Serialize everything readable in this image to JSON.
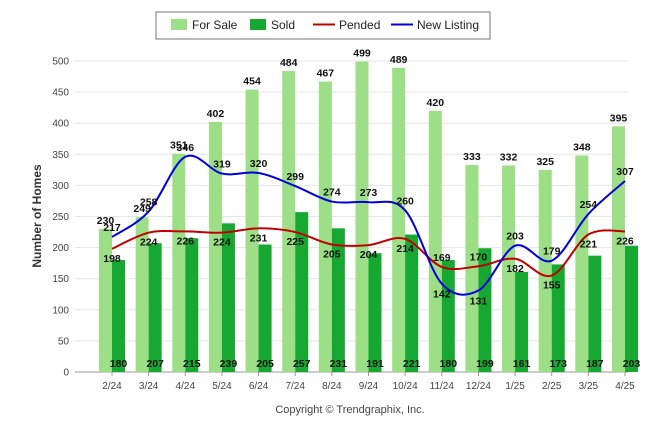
{
  "chart_data": {
    "type": "bar",
    "categories": [
      "2/24",
      "3/24",
      "4/24",
      "5/24",
      "6/24",
      "7/24",
      "8/24",
      "9/24",
      "10/24",
      "11/24",
      "12/24",
      "1/25",
      "2/25",
      "3/25",
      "4/25"
    ],
    "series": [
      {
        "name": "For Sale",
        "kind": "bar",
        "color": "#9ddf86",
        "values": [
          230,
          249,
          351,
          402,
          454,
          484,
          467,
          499,
          489,
          420,
          333,
          332,
          325,
          348,
          395
        ]
      },
      {
        "name": "Sold",
        "kind": "bar",
        "color": "#16a830",
        "values": [
          180,
          207,
          215,
          239,
          205,
          257,
          231,
          191,
          221,
          180,
          199,
          161,
          173,
          187,
          203
        ]
      },
      {
        "name": "Pended",
        "kind": "line",
        "color": "#c00000",
        "values": [
          198,
          224,
          226,
          224,
          231,
          225,
          205,
          204,
          214,
          169,
          170,
          182,
          155,
          221,
          226
        ]
      },
      {
        "name": "New Listing",
        "kind": "line",
        "color": "#0000dd",
        "values": [
          217,
          258,
          346,
          319,
          320,
          299,
          274,
          273,
          260,
          142,
          131,
          203,
          179,
          254,
          307
        ]
      }
    ],
    "ylabel": "Number of Homes",
    "xlabel": "",
    "ylim": [
      0,
      500
    ],
    "yticks": [
      0,
      50,
      100,
      150,
      200,
      250,
      300,
      350,
      400,
      450,
      500
    ],
    "grid": true,
    "legend_position": "top-center"
  },
  "footer": {
    "copyright": "Copyright © Trendgraphix, Inc."
  }
}
